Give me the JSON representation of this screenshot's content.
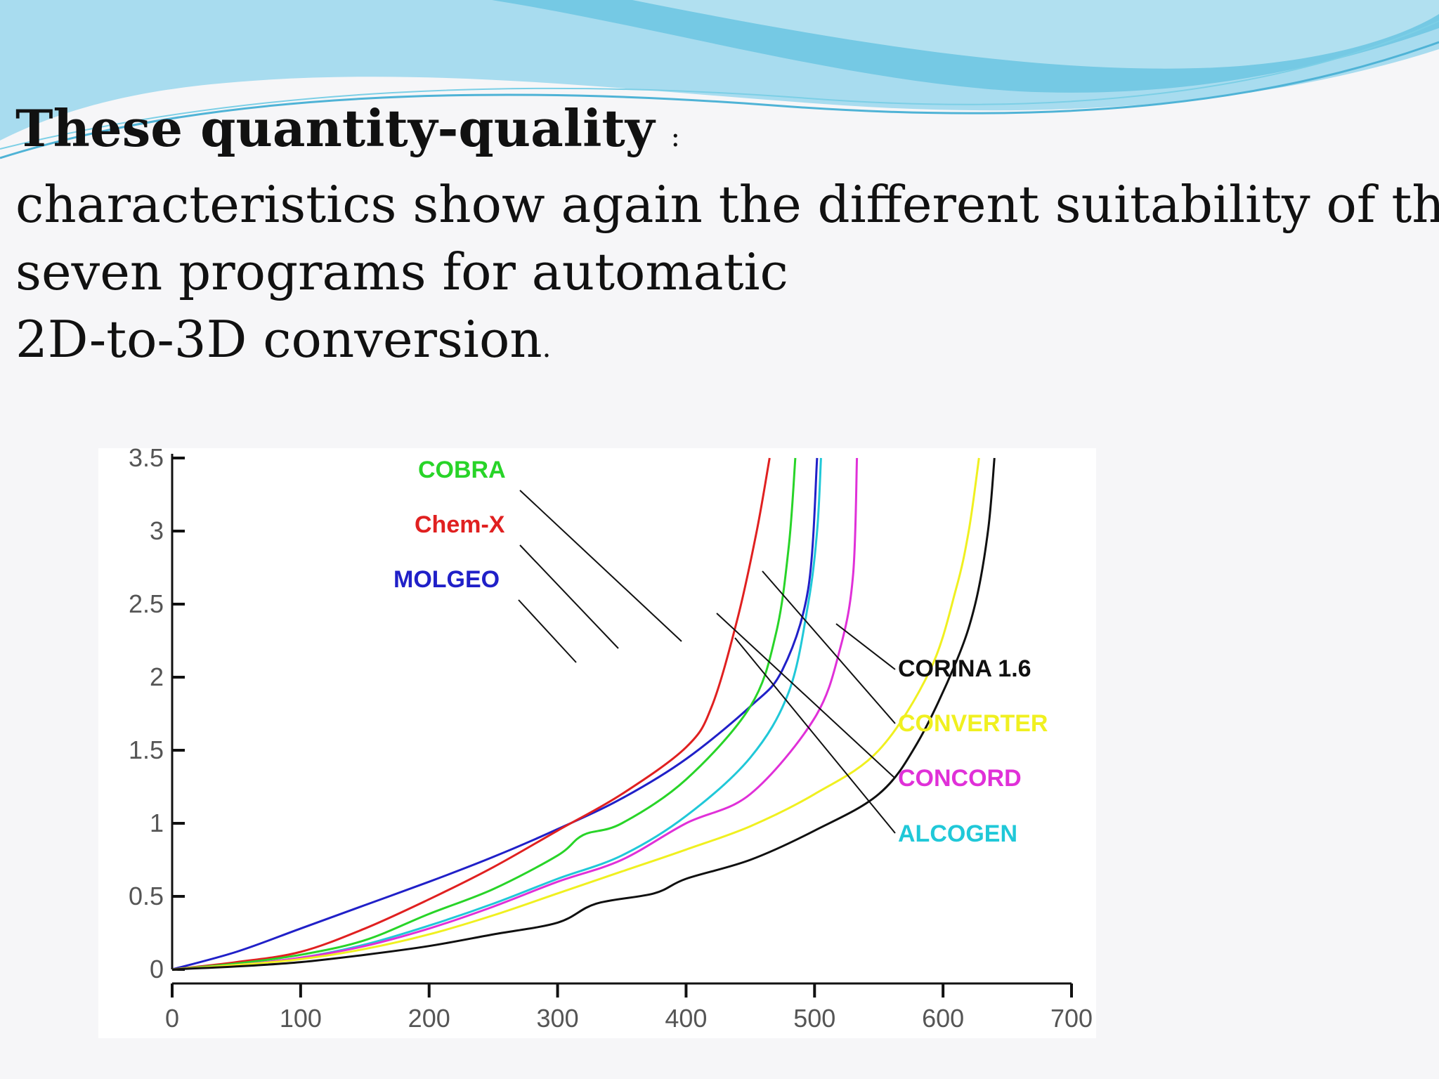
{
  "slide": {
    "heading_bold": "These quantity-quality",
    "heading_colon": ":",
    "line2": "characteristics show again the different suitability of the",
    "line3": "seven programs for automatic",
    "line4": "2D-to-3D conversion",
    "line4_period": ".",
    "colors": {
      "wave_light": "#a8dcef",
      "wave_dark": "#4fb3d6",
      "background": "#f6f6f8"
    }
  },
  "chart_data": {
    "type": "line",
    "title": "",
    "xlabel": "",
    "ylabel": "",
    "xlim": [
      0,
      700
    ],
    "ylim": [
      0,
      3.5
    ],
    "xticks": [
      0,
      100,
      200,
      300,
      400,
      500,
      600,
      700
    ],
    "yticks": [
      0,
      0.5,
      1,
      1.5,
      2,
      2.5,
      3,
      3.5
    ],
    "xtick_labels": [
      "0",
      "100",
      "200",
      "300",
      "400",
      "500",
      "600",
      "700"
    ],
    "ytick_labels": [
      "0",
      "0.5",
      "1",
      "1.5",
      "2",
      "2.5",
      "3",
      "3.5"
    ],
    "grid": false,
    "series": [
      {
        "name": "MOLGEO",
        "color": "#2020c8",
        "points": [
          [
            0,
            0
          ],
          [
            50,
            0.12
          ],
          [
            100,
            0.28
          ],
          [
            150,
            0.44
          ],
          [
            200,
            0.6
          ],
          [
            250,
            0.77
          ],
          [
            300,
            0.96
          ],
          [
            350,
            1.17
          ],
          [
            400,
            1.44
          ],
          [
            450,
            1.8
          ],
          [
            475,
            2.05
          ],
          [
            495,
            2.6
          ],
          [
            502,
            3.5
          ]
        ]
      },
      {
        "name": "Chem-X",
        "color": "#e02020",
        "points": [
          [
            0,
            0
          ],
          [
            50,
            0.05
          ],
          [
            100,
            0.12
          ],
          [
            150,
            0.28
          ],
          [
            200,
            0.48
          ],
          [
            250,
            0.7
          ],
          [
            300,
            0.95
          ],
          [
            350,
            1.2
          ],
          [
            400,
            1.52
          ],
          [
            420,
            1.8
          ],
          [
            440,
            2.4
          ],
          [
            455,
            3.0
          ],
          [
            465,
            3.5
          ]
        ]
      },
      {
        "name": "COBRA",
        "color": "#28d428",
        "points": [
          [
            0,
            0
          ],
          [
            50,
            0.04
          ],
          [
            100,
            0.1
          ],
          [
            150,
            0.2
          ],
          [
            200,
            0.38
          ],
          [
            250,
            0.55
          ],
          [
            300,
            0.78
          ],
          [
            320,
            0.92
          ],
          [
            350,
            1.0
          ],
          [
            400,
            1.3
          ],
          [
            450,
            1.8
          ],
          [
            470,
            2.3
          ],
          [
            480,
            2.9
          ],
          [
            485,
            3.5
          ]
        ]
      },
      {
        "name": "ALCOGEN",
        "color": "#20c8d8",
        "points": [
          [
            0,
            0
          ],
          [
            50,
            0.03
          ],
          [
            100,
            0.08
          ],
          [
            150,
            0.17
          ],
          [
            200,
            0.3
          ],
          [
            250,
            0.45
          ],
          [
            300,
            0.62
          ],
          [
            350,
            0.78
          ],
          [
            400,
            1.05
          ],
          [
            450,
            1.45
          ],
          [
            480,
            1.9
          ],
          [
            495,
            2.5
          ],
          [
            502,
            3.0
          ],
          [
            505,
            3.5
          ]
        ]
      },
      {
        "name": "CONCORD",
        "color": "#e030d8",
        "points": [
          [
            0,
            0
          ],
          [
            50,
            0.03
          ],
          [
            100,
            0.08
          ],
          [
            150,
            0.16
          ],
          [
            200,
            0.28
          ],
          [
            250,
            0.43
          ],
          [
            300,
            0.6
          ],
          [
            350,
            0.75
          ],
          [
            400,
            1.0
          ],
          [
            450,
            1.2
          ],
          [
            500,
            1.72
          ],
          [
            520,
            2.2
          ],
          [
            530,
            2.7
          ],
          [
            533,
            3.5
          ]
        ]
      },
      {
        "name": "CONVERTER",
        "color": "#f0f020",
        "points": [
          [
            0,
            0
          ],
          [
            50,
            0.03
          ],
          [
            100,
            0.07
          ],
          [
            150,
            0.14
          ],
          [
            200,
            0.24
          ],
          [
            250,
            0.37
          ],
          [
            300,
            0.52
          ],
          [
            350,
            0.67
          ],
          [
            400,
            0.82
          ],
          [
            450,
            0.98
          ],
          [
            500,
            1.2
          ],
          [
            550,
            1.5
          ],
          [
            590,
            2.05
          ],
          [
            610,
            2.6
          ],
          [
            620,
            3.0
          ],
          [
            628,
            3.5
          ]
        ]
      },
      {
        "name": "CORINA 1.6",
        "color": "#101010",
        "points": [
          [
            0,
            0
          ],
          [
            50,
            0.02
          ],
          [
            100,
            0.05
          ],
          [
            150,
            0.1
          ],
          [
            200,
            0.16
          ],
          [
            250,
            0.24
          ],
          [
            300,
            0.32
          ],
          [
            330,
            0.45
          ],
          [
            375,
            0.52
          ],
          [
            400,
            0.62
          ],
          [
            450,
            0.75
          ],
          [
            500,
            0.95
          ],
          [
            550,
            1.2
          ],
          [
            580,
            1.55
          ],
          [
            610,
            2.1
          ],
          [
            625,
            2.5
          ],
          [
            635,
            3.0
          ],
          [
            640,
            3.5
          ]
        ]
      }
    ],
    "labels": [
      {
        "text": "COBRA",
        "color": "#28d428",
        "series": "COBRA"
      },
      {
        "text": "Chem-X",
        "color": "#e02020",
        "series": "Chem-X"
      },
      {
        "text": "MOLGEO",
        "color": "#2020c8",
        "series": "MOLGEO"
      },
      {
        "text": "CORINA 1.6",
        "color": "#101010",
        "series": "CORINA 1.6"
      },
      {
        "text": "CONVERTER",
        "color": "#f0f020",
        "series": "CONVERTER"
      },
      {
        "text": "CONCORD",
        "color": "#e030d8",
        "series": "CONCORD"
      },
      {
        "text": "ALCOGEN",
        "color": "#20c8d8",
        "series": "ALCOGEN"
      }
    ]
  }
}
